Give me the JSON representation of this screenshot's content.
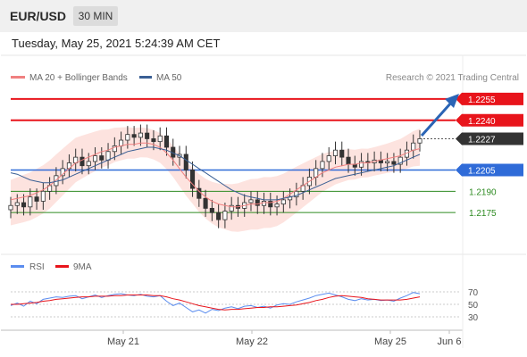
{
  "header": {
    "symbol": "EUR/USD",
    "timeframe": "30 MIN"
  },
  "datetime": "Tuesday, May 25, 2021 5:24:39 AM CET",
  "legend": {
    "ma20_bb": "MA 20 + Bollinger Bands",
    "ma50": "MA 50",
    "credit": "Research © 2021 Trading Central"
  },
  "levels": [
    {
      "value": 1.2255,
      "label": "1.2255",
      "kind": "resistance",
      "color": "#e8141b"
    },
    {
      "value": 1.224,
      "label": "1.2240",
      "kind": "resistance",
      "color": "#e8141b"
    },
    {
      "value": 1.2227,
      "label": "1.2227",
      "kind": "last-price",
      "color": "#333333"
    },
    {
      "value": 1.2205,
      "label": "1.2205",
      "kind": "pivot",
      "color": "#2f6bd8"
    },
    {
      "value": 1.219,
      "label": "1.2190",
      "kind": "support",
      "color": "#2e8b22"
    },
    {
      "value": 1.2175,
      "label": "1.2175",
      "kind": "support",
      "color": "#2e8b22"
    }
  ],
  "rsi_legend": {
    "rsi": "RSI",
    "ma9": "9MA"
  },
  "rsi_ticks": [
    "70",
    "50",
    "30"
  ],
  "x_ticks": [
    "May 21",
    "May 22",
    "May 25",
    "Jun 6"
  ],
  "colors": {
    "ma20": "#f08080",
    "ma50": "#3a5f94",
    "bb_fill": "#fde0dc",
    "rsi": "#5b8def",
    "rsi_ma": "#e8141b",
    "arrow": "#2a64b5"
  },
  "chart_data": {
    "type": "candlestick",
    "ylim": [
      1.2155,
      1.2265
    ],
    "x_labels": [
      "May 21",
      "May 22",
      "May 25",
      "Jun 6"
    ],
    "price_closes": [
      1.218,
      1.2182,
      1.2179,
      1.2186,
      1.2183,
      1.219,
      1.2194,
      1.2201,
      1.2206,
      1.221,
      1.2214,
      1.2208,
      1.2211,
      1.2215,
      1.2212,
      1.2218,
      1.2222,
      1.2226,
      1.223,
      1.2228,
      1.2231,
      1.2227,
      1.2225,
      1.2229,
      1.2221,
      1.2214,
      1.2216,
      1.2205,
      1.2192,
      1.2185,
      1.2178,
      1.2175,
      1.217,
      1.2176,
      1.218,
      1.2178,
      1.2182,
      1.2184,
      1.218,
      1.2183,
      1.2179,
      1.2181,
      1.2184,
      1.2186,
      1.219,
      1.2194,
      1.22,
      1.2206,
      1.2211,
      1.2215,
      1.2219,
      1.2214,
      1.2209,
      1.2207,
      1.2211,
      1.221,
      1.2212,
      1.221,
      1.2211,
      1.2209,
      1.2214,
      1.2219,
      1.2224,
      1.2227
    ],
    "ma20_line": [
      1.2184,
      1.2185,
      1.2186,
      1.2187,
      1.2189,
      1.2191,
      1.2194,
      1.2198,
      1.2202,
      1.2206,
      1.221,
      1.2212,
      1.2214,
      1.2216,
      1.2218,
      1.2219,
      1.2221,
      1.2222,
      1.2223,
      1.2223,
      1.2224,
      1.2224,
      1.2223,
      1.2221,
      1.2217,
      1.2212,
      1.2206,
      1.22,
      1.2195,
      1.219,
      1.2186,
      1.2183,
      1.2181,
      1.218,
      1.2179,
      1.2179,
      1.218,
      1.2181,
      1.2181,
      1.2182,
      1.2182,
      1.2183,
      1.2185,
      1.2188,
      1.2191,
      1.2194,
      1.2197,
      1.22,
      1.2203,
      1.2205,
      1.2207,
      1.2208,
      1.2209,
      1.2209,
      1.221,
      1.221,
      1.2211,
      1.2212,
      1.2213,
      1.2214,
      1.2215,
      1.2217,
      1.2219,
      1.222
    ],
    "ma50_line": [
      1.2203,
      1.2202,
      1.22,
      1.2198,
      1.2197,
      1.2196,
      1.2196,
      1.2197,
      1.2198,
      1.22,
      1.2202,
      1.2204,
      1.2206,
      1.2208,
      1.221,
      1.2212,
      1.2214,
      1.2216,
      1.2218,
      1.2219,
      1.222,
      1.2221,
      1.2221,
      1.222,
      1.2219,
      1.2217,
      1.2215,
      1.2212,
      1.2209,
      1.2206,
      1.2203,
      1.22,
      1.2197,
      1.2194,
      1.2191,
      1.2189,
      1.2187,
      1.2186,
      1.2185,
      1.2184,
      1.2184,
      1.2184,
      1.2185,
      1.2186,
      1.2187,
      1.2189,
      1.2191,
      1.2193,
      1.2195,
      1.2197,
      1.2199,
      1.22,
      1.2201,
      1.2202,
      1.2203,
      1.2204,
      1.2205,
      1.2206,
      1.2207,
      1.2208,
      1.221,
      1.2212,
      1.2214,
      1.2216
    ],
    "rsi_ylim": [
      20,
      80
    ],
    "rsi_values": [
      48,
      52,
      47,
      55,
      51,
      58,
      60,
      62,
      61,
      63,
      64,
      59,
      62,
      65,
      61,
      64,
      66,
      67,
      65,
      64,
      66,
      63,
      62,
      64,
      55,
      48,
      52,
      45,
      38,
      41,
      36,
      42,
      40,
      44,
      46,
      43,
      47,
      48,
      45,
      47,
      44,
      49,
      51,
      50,
      54,
      57,
      60,
      64,
      66,
      68,
      65,
      62,
      58,
      56,
      59,
      57,
      58,
      56,
      57,
      55,
      60,
      64,
      69,
      67
    ],
    "rsi_ma_values": [
      50,
      50,
      51,
      52,
      53,
      55,
      56,
      58,
      59,
      60,
      61,
      62,
      62,
      63,
      63,
      63,
      64,
      64,
      65,
      65,
      65,
      65,
      64,
      64,
      62,
      59,
      57,
      54,
      51,
      48,
      46,
      44,
      42,
      41,
      42,
      42,
      43,
      44,
      45,
      45,
      46,
      46,
      47,
      48,
      49,
      51,
      53,
      56,
      58,
      61,
      63,
      64,
      63,
      62,
      61,
      59,
      58,
      57,
      57,
      57,
      57,
      58,
      60,
      62
    ]
  }
}
